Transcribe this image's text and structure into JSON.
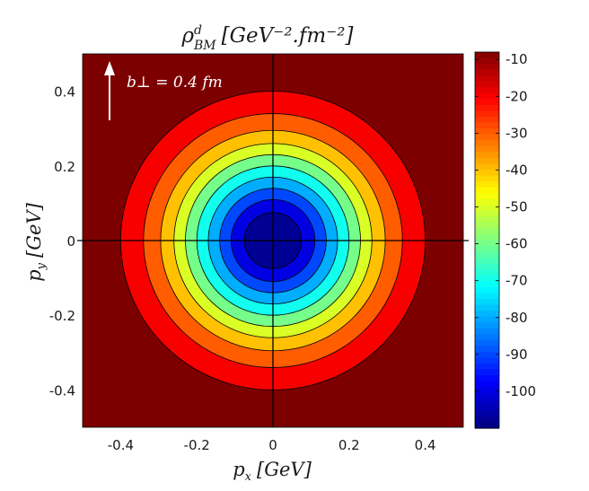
{
  "chart_data": {
    "type": "contour",
    "title": {
      "base": "ρ",
      "sup": "d",
      "sub": "BM",
      "units": "[GeV⁻².fm⁻²]"
    },
    "xlabel": {
      "var": "p",
      "sub": "x",
      "units": "[GeV]"
    },
    "ylabel": {
      "var": "p",
      "sub": "y",
      "units": "[GeV]"
    },
    "xlim": [
      -0.5,
      0.5
    ],
    "ylim": [
      -0.5,
      0.5
    ],
    "xticks": [
      -0.4,
      -0.2,
      0,
      0.2,
      0.4
    ],
    "xtick_labels": [
      "-0.4",
      "-0.2",
      "0",
      "0.2",
      "0.4"
    ],
    "yticks": [
      -0.4,
      -0.2,
      0,
      0.2,
      0.4
    ],
    "ytick_labels": [
      "-0.4",
      "-0.2",
      "0",
      "0.2",
      "0.4"
    ],
    "annotation": {
      "text": "b⊥ = 0.4 fm",
      "x": -0.43,
      "y": 0.42
    },
    "contour_levels": [
      {
        "level": -10,
        "radius": 0.4
      },
      {
        "level": -20,
        "radius": 0.34
      },
      {
        "level": -30,
        "radius": 0.295
      },
      {
        "level": -40,
        "radius": 0.26
      },
      {
        "level": -50,
        "radius": 0.23
      },
      {
        "level": -60,
        "radius": 0.2
      },
      {
        "level": -70,
        "radius": 0.17
      },
      {
        "level": -80,
        "radius": 0.14
      },
      {
        "level": -90,
        "radius": 0.11
      },
      {
        "level": -100,
        "radius": 0.075
      }
    ],
    "colorbar": {
      "min": -110,
      "max": -8,
      "ticks": [
        -10,
        -20,
        -30,
        -40,
        -50,
        -60,
        -70,
        -80,
        -90,
        -100
      ],
      "tick_labels": [
        "-10",
        "-20",
        "-30",
        "-40",
        "-50",
        "-60",
        "-70",
        "-80",
        "-90",
        "-100"
      ],
      "colormap": "jet"
    },
    "colors": {
      "outer": "#7d0000",
      "line": "#000000",
      "arrow": "#ffffff"
    }
  }
}
